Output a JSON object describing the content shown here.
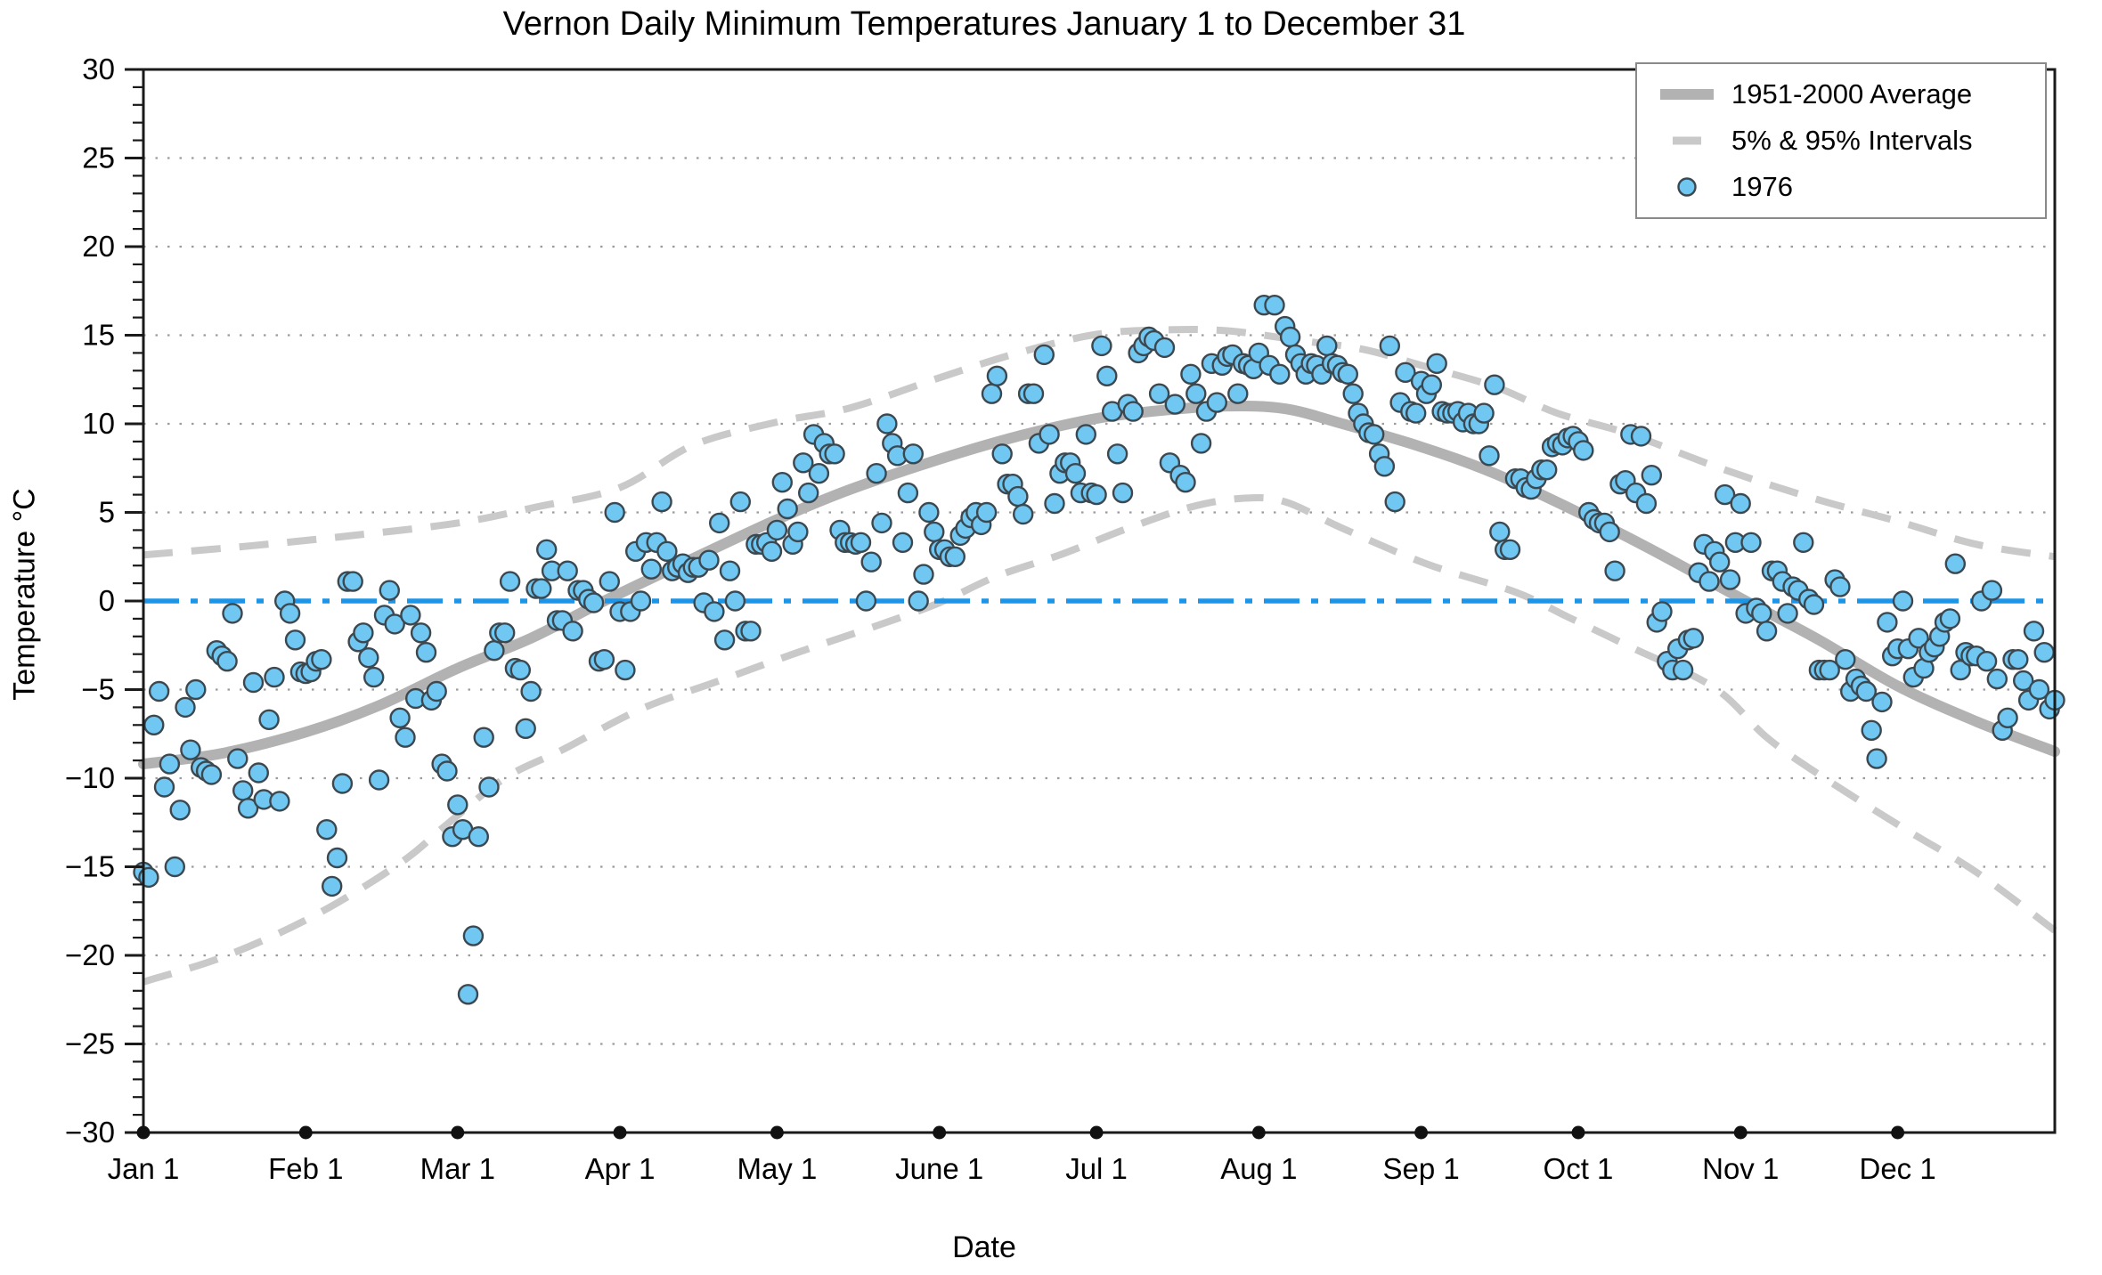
{
  "title": "Vernon Daily Minimum Temperatures January 1 to December 31",
  "axes": {
    "ylabel": "Temperature °C",
    "xlabel": "Date"
  },
  "legend": [
    {
      "label": "1951-2000 Average",
      "swatch": "thick-gray-line"
    },
    {
      "label": "5% & 95% Intervals",
      "swatch": "gray-dash"
    },
    {
      "label": "1976",
      "swatch": "blue-dot"
    }
  ],
  "chart_data": {
    "type": "scatter",
    "title": "Vernon Daily Minimum Temperatures January 1 to December 31",
    "xlabel": "Date",
    "ylabel": "Temperature °C",
    "ylim": [
      -30,
      30
    ],
    "xlim_days": [
      0,
      365
    ],
    "grid": "dotted horizontal every 5 degrees",
    "legend_position": "upper right",
    "y_tick_step_major": 5,
    "y_tick_step_minor": 1,
    "y_tick_labels": [
      "30",
      "25",
      "20",
      "15",
      "10",
      "5",
      "0",
      "−5",
      "−10",
      "−15",
      "−20",
      "−25",
      "−30"
    ],
    "y_tick_values": [
      30,
      25,
      20,
      15,
      10,
      5,
      0,
      -5,
      -10,
      -15,
      -20,
      -25,
      -30
    ],
    "x_tick_days": [
      0,
      31,
      60,
      91,
      121,
      152,
      182,
      213,
      244,
      274,
      305,
      335
    ],
    "x_tick_labels": [
      "Jan 1",
      "Feb 1",
      "Mar 1",
      "Apr 1",
      "May 1",
      "June 1",
      "Jul 1",
      "Aug 1",
      "Sep 1",
      "Oct 1",
      "Nov 1",
      "Dec 1"
    ],
    "colors": {
      "average_line": "#b2b2b2",
      "interval_line": "#c9c9c9",
      "zero_line": "#1c95e8",
      "scatter_fill": "#6fc7f2",
      "scatter_edge": "#3c4850",
      "grid": "#9c9c9c",
      "frame": "#1a1a1a"
    },
    "zero_line": {
      "value": 0
    },
    "series": [
      {
        "name": "1951-2000 Average",
        "type": "line",
        "points": [
          [
            0,
            -9.2
          ],
          [
            15,
            -8.6
          ],
          [
            31,
            -7.4
          ],
          [
            45,
            -5.9
          ],
          [
            60,
            -3.8
          ],
          [
            74,
            -2.1
          ],
          [
            88,
            0
          ],
          [
            105,
            2.4
          ],
          [
            121,
            4.6
          ],
          [
            135,
            6.3
          ],
          [
            152,
            8.0
          ],
          [
            167,
            9.3
          ],
          [
            182,
            10.3
          ],
          [
            196,
            10.8
          ],
          [
            207,
            11.0
          ],
          [
            218,
            10.85
          ],
          [
            229,
            10.0
          ],
          [
            244,
            8.7
          ],
          [
            258,
            7.2
          ],
          [
            274,
            5.0
          ],
          [
            288,
            2.9
          ],
          [
            306,
            0
          ],
          [
            320,
            -2.2
          ],
          [
            335,
            -4.8
          ],
          [
            350,
            -6.8
          ],
          [
            365,
            -8.5
          ]
        ]
      },
      {
        "name": "95% Interval",
        "type": "dashed-line",
        "points": [
          [
            0,
            2.6
          ],
          [
            20,
            3.1
          ],
          [
            40,
            3.7
          ],
          [
            60,
            4.4
          ],
          [
            75,
            5.3
          ],
          [
            91,
            6.4
          ],
          [
            105,
            8.8
          ],
          [
            121,
            10.1
          ],
          [
            135,
            10.9
          ],
          [
            152,
            12.6
          ],
          [
            167,
            14.0
          ],
          [
            182,
            15.05
          ],
          [
            195,
            15.3
          ],
          [
            207,
            15.25
          ],
          [
            221,
            14.7
          ],
          [
            233,
            14.2
          ],
          [
            244,
            13.3
          ],
          [
            258,
            12.1
          ],
          [
            270,
            10.6
          ],
          [
            284,
            9.4
          ],
          [
            302,
            7.4
          ],
          [
            320,
            5.7
          ],
          [
            335,
            4.5
          ],
          [
            350,
            3.2
          ],
          [
            365,
            2.5
          ]
        ]
      },
      {
        "name": "5% Interval",
        "type": "dashed-line",
        "points": [
          [
            0,
            -21.5
          ],
          [
            16,
            -20.0
          ],
          [
            33,
            -17.7
          ],
          [
            49,
            -14.8
          ],
          [
            58,
            -12.6
          ],
          [
            69,
            -10.0
          ],
          [
            80,
            -8.4
          ],
          [
            95,
            -6.1
          ],
          [
            110,
            -4.5
          ],
          [
            125,
            -2.9
          ],
          [
            140,
            -1.4
          ],
          [
            152,
            -0.1
          ],
          [
            163,
            1.4
          ],
          [
            175,
            2.6
          ],
          [
            188,
            4.1
          ],
          [
            200,
            5.3
          ],
          [
            210,
            5.8
          ],
          [
            218,
            5.6
          ],
          [
            229,
            4.1
          ],
          [
            245,
            2.1
          ],
          [
            262,
            0.5
          ],
          [
            272,
            -0.9
          ],
          [
            284,
            -2.6
          ],
          [
            300,
            -4.9
          ],
          [
            310,
            -7.7
          ],
          [
            320,
            -9.8
          ],
          [
            336,
            -12.8
          ],
          [
            350,
            -15.3
          ],
          [
            365,
            -18.6
          ]
        ]
      },
      {
        "name": "1976",
        "type": "scatter",
        "start_day": 0,
        "daily_values": [
          -15.3,
          -15.6,
          -7.0,
          -5.1,
          -10.5,
          -9.2,
          -15.0,
          -11.8,
          -6.0,
          -8.4,
          -5.0,
          -9.4,
          -9.6,
          -9.8,
          -2.8,
          -3.1,
          -3.4,
          -0.7,
          -8.9,
          -10.7,
          -11.7,
          -4.6,
          -9.7,
          -11.2,
          -6.7,
          -4.3,
          -11.3,
          0.0,
          -0.7,
          -2.2,
          -4.0,
          -4.1,
          -4.0,
          -3.4,
          -3.3,
          -12.9,
          -16.1,
          -14.5,
          -10.3,
          1.1,
          1.1,
          -2.3,
          -1.8,
          -3.2,
          -4.3,
          -10.1,
          -0.8,
          0.6,
          -1.3,
          -6.6,
          -7.7,
          -0.8,
          -5.5,
          -1.8,
          -2.9,
          -5.6,
          -5.1,
          -9.2,
          -9.6,
          -13.3,
          -11.5,
          -12.9,
          -22.2,
          -18.9,
          -13.3,
          -7.7,
          -10.5,
          -2.8,
          -1.8,
          -1.8,
          1.1,
          -3.8,
          -3.9,
          -7.2,
          -5.1,
          0.7,
          0.7,
          2.9,
          1.7,
          -1.1,
          -1.1,
          1.7,
          -1.7,
          0.6,
          0.6,
          0.1,
          -0.1,
          -3.4,
          -3.3,
          1.1,
          5.0,
          -0.6,
          -3.9,
          -0.6,
          2.8,
          0.0,
          3.3,
          1.8,
          3.3,
          5.6,
          2.8,
          1.7,
          1.9,
          2.1,
          1.6,
          1.9,
          1.9,
          -0.1,
          2.3,
          -0.6,
          4.4,
          -2.2,
          1.7,
          0.0,
          5.6,
          -1.7,
          -1.7,
          3.2,
          3.2,
          3.3,
          2.8,
          4.0,
          6.7,
          5.2,
          3.2,
          3.9,
          7.8,
          6.1,
          9.4,
          7.2,
          8.9,
          8.3,
          8.3,
          4.0,
          3.3,
          3.3,
          3.2,
          3.3,
          0.0,
          2.2,
          7.2,
          4.4,
          10.0,
          8.9,
          8.2,
          3.3,
          6.1,
          8.3,
          0.0,
          1.5,
          5.0,
          3.9,
          2.9,
          2.9,
          2.5,
          2.5,
          3.7,
          4.1,
          4.7,
          5.0,
          4.3,
          5.0,
          11.7,
          12.7,
          8.3,
          6.6,
          6.6,
          5.9,
          4.9,
          11.7,
          11.7,
          8.9,
          13.9,
          9.4,
          5.5,
          7.2,
          7.8,
          7.8,
          7.2,
          6.1,
          9.4,
          6.1,
          6.0,
          14.4,
          12.7,
          10.7,
          8.3,
          6.1,
          11.1,
          10.7,
          14.0,
          14.4,
          14.9,
          14.7,
          11.7,
          14.3,
          7.8,
          11.1,
          7.1,
          6.7,
          12.8,
          11.7,
          8.9,
          10.7,
          13.4,
          11.2,
          13.3,
          13.8,
          13.9,
          11.7,
          13.4,
          13.3,
          13.1,
          14.0,
          16.7,
          13.3,
          16.7,
          12.8,
          15.5,
          14.9,
          13.9,
          13.4,
          12.8,
          13.4,
          13.3,
          12.8,
          14.4,
          13.4,
          13.3,
          12.9,
          12.8,
          11.7,
          10.6,
          10.0,
          9.5,
          9.4,
          8.3,
          7.6,
          14.4,
          5.6,
          11.2,
          12.9,
          10.7,
          10.6,
          12.4,
          11.7,
          12.2,
          13.4,
          10.7,
          10.6,
          10.6,
          10.7,
          10.1,
          10.6,
          10.0,
          10.0,
          10.6,
          8.2,
          12.2,
          3.9,
          2.9,
          2.9,
          6.9,
          6.9,
          6.4,
          6.3,
          6.9,
          7.4,
          7.4,
          8.7,
          8.9,
          8.8,
          9.2,
          9.3,
          9.0,
          8.5,
          5.0,
          4.6,
          4.4,
          4.4,
          3.9,
          1.7,
          6.6,
          6.8,
          9.4,
          6.1,
          9.3,
          5.5,
          7.1,
          -1.2,
          -0.6,
          -3.4,
          -3.9,
          -2.7,
          -3.9,
          -2.2,
          -2.1,
          1.6,
          3.2,
          1.1,
          2.8,
          2.2,
          6.0,
          1.2,
          3.3,
          5.5,
          -0.7,
          3.3,
          -0.4,
          -0.7,
          -1.7,
          1.7,
          1.7,
          1.1,
          -0.7,
          0.8,
          0.6,
          3.3,
          0.1,
          -0.2,
          -3.9,
          -3.9,
          -3.9,
          1.2,
          0.8,
          -3.3,
          -5.1,
          -4.4,
          -4.8,
          -5.1,
          -7.3,
          -8.9,
          -5.7,
          -1.2,
          -3.1,
          -2.7,
          0.0,
          -2.7,
          -4.3,
          -2.1,
          -3.8,
          -2.9,
          -2.6,
          -2.0,
          -1.2,
          -1.0,
          2.1,
          -3.9,
          -2.9,
          -3.1,
          -3.1,
          0.0,
          -3.4,
          0.6,
          -4.4,
          -7.3,
          -6.6,
          -3.3,
          -3.3,
          -4.5,
          -5.6,
          -1.7,
          -5.0,
          -2.9,
          -6.1,
          -5.6
        ]
      }
    ]
  }
}
